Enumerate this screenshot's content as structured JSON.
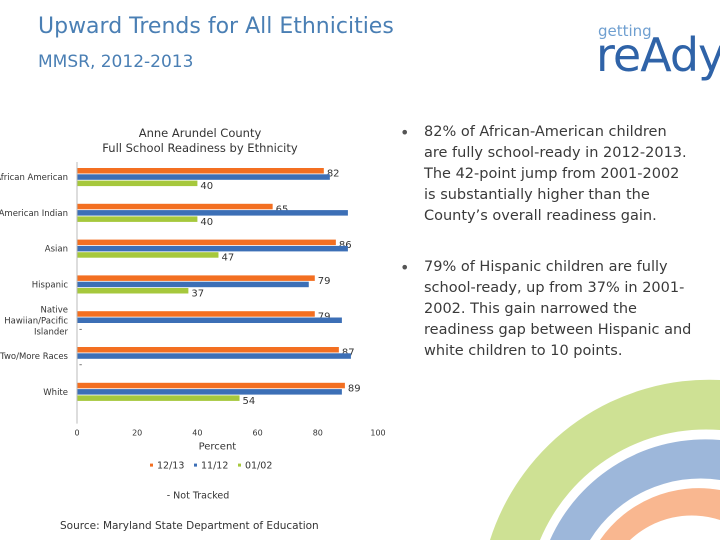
{
  "slide": {
    "title": "Upward Trends for All Ethnicities",
    "subtitle": "MMSR, 2012-2013",
    "logo_small": "getting",
    "logo_big": "reAdy",
    "source": "Source: Maryland State Department of Education",
    "bullets": [
      "82% of African-American children are fully school-ready in 2012-2013.  The 42-point jump from 2001-2002 is substantially higher than the County’s overall readiness gain.",
      "79% of Hispanic children are fully school-ready, up from 37% in 2001-2002.  This gain narrowed the readiness gap between Hispanic and white children to 10 points."
    ]
  },
  "colors": {
    "title": "#4a7fb4",
    "s1213": "#f36f21",
    "s1112": "#3c6fb6",
    "s0102": "#a6c83c"
  },
  "chart_data": {
    "type": "bar",
    "orientation": "horizontal",
    "title": "Anne Arundel County\nFull School Readiness by Ethnicity",
    "xlabel": "Percent",
    "xlim": [
      0,
      100
    ],
    "xticks": [
      0,
      20,
      40,
      60,
      80,
      100
    ],
    "categories": [
      "African American",
      "American Indian",
      "Asian",
      "Hispanic",
      "Native Hawiian/Pacific Islander",
      "Two/More Races",
      "White"
    ],
    "series": [
      {
        "name": "12/13",
        "color": "#f36f21",
        "values": [
          82,
          65,
          86,
          79,
          79,
          87,
          89
        ]
      },
      {
        "name": "11/12",
        "color": "#3c6fb6",
        "values": [
          84,
          90,
          90,
          77,
          88,
          91,
          88
        ]
      },
      {
        "name": "01/02",
        "color": "#a6c83c",
        "values": [
          40,
          40,
          47,
          37,
          null,
          null,
          54
        ]
      }
    ],
    "labeled_series": [
      "12/13",
      "01/02"
    ],
    "not_tracked_mark": "-",
    "legend_note": "- Not Tracked"
  }
}
